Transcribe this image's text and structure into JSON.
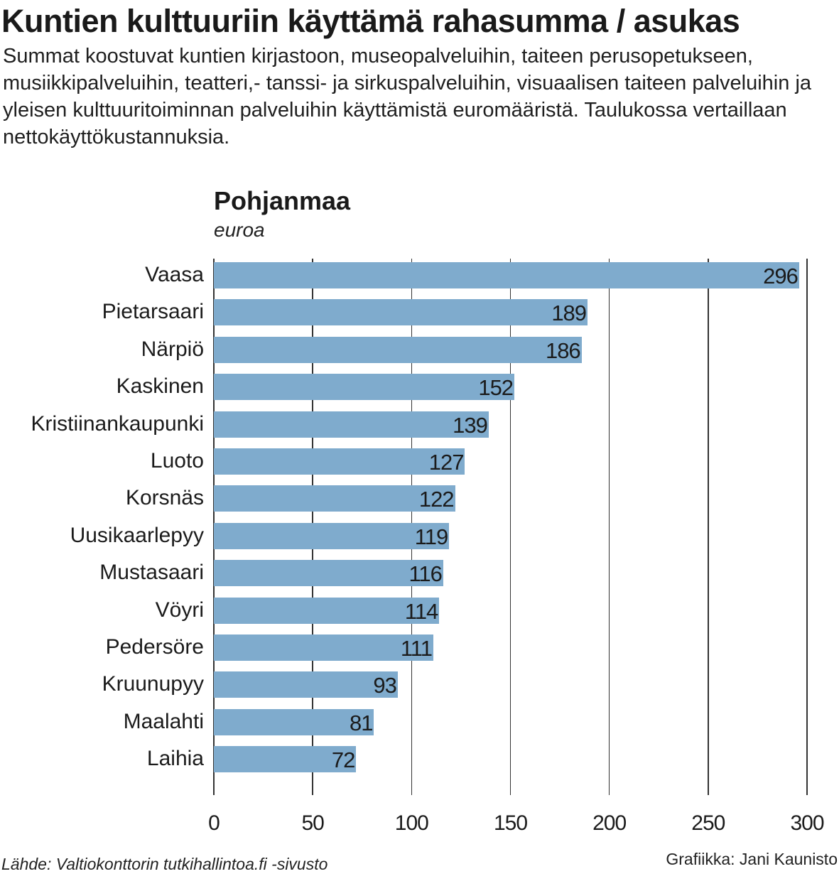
{
  "header": {
    "title": "Kuntien kulttuuriin käyttämä rahasumma / asukas",
    "subtitle": "Summat koostuvat kuntien kirjastoon, museopalveluihin, taiteen perusopetukseen, musiikkipalveluihin, teatteri,- tanssi- ja sirkuspalveluihin, visuaalisen taiteen palveluihin ja yleisen kulttuuritoiminnan palveluihin käyttämistä euromääristä. Taulukossa vertaillaan nettokäyttökustannuksia."
  },
  "chart": {
    "region": "Pohjanmaa",
    "unit": "euroa",
    "bar_color": "#7fabcd"
  },
  "footer": {
    "source": "Lähde: Valtiokonttorin tutkihallintoa.fi -sivusto",
    "credit": "Grafiikka: Jani Kaunisto"
  },
  "chart_data": {
    "type": "bar",
    "orientation": "horizontal",
    "title": "Pohjanmaa",
    "subtitle": "euroa",
    "categories": [
      "Vaasa",
      "Pietarsaari",
      "Närpiö",
      "Kaskinen",
      "Kristiinankaupunki",
      "Luoto",
      "Korsnäs",
      "Uusikaarlepyy",
      "Mustasaari",
      "Vöyri",
      "Pedersöre",
      "Kruunupyy",
      "Maalahti",
      "Laihia"
    ],
    "values": [
      296,
      189,
      186,
      152,
      139,
      127,
      122,
      119,
      116,
      114,
      111,
      93,
      81,
      72
    ],
    "xlabel": "",
    "ylabel": "",
    "xlim": [
      0,
      300
    ],
    "xticks": [
      0,
      50,
      100,
      150,
      200,
      250,
      300
    ],
    "grid": true,
    "data_labels": true,
    "legend": null
  }
}
